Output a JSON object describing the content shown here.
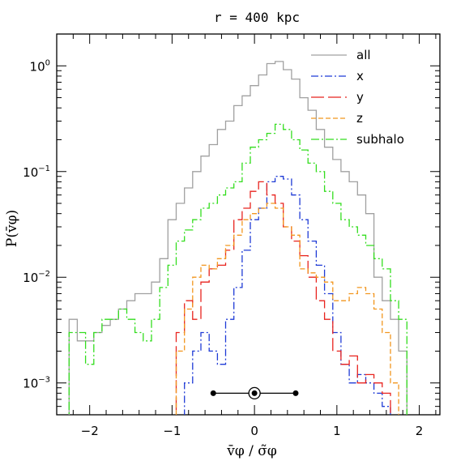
{
  "chart_data": {
    "type": "line",
    "title": "r = 400 kpc",
    "xlabel": "v̄φ / σ̃φ",
    "ylabel": "P(v̄φ)",
    "xlim": [
      -2.4,
      2.25
    ],
    "ylim": [
      0.0005,
      2.0
    ],
    "yscale": "log",
    "xticks": [
      -2,
      -1,
      0,
      1,
      2
    ],
    "xtick_labels": [
      "−2",
      "−1",
      "0",
      "1",
      "2"
    ],
    "yticks": [
      0.001,
      0.01,
      0.1,
      1
    ],
    "ytick_labels": [
      {
        "base": "10",
        "exp": "−3"
      },
      {
        "base": "10",
        "exp": "−2"
      },
      {
        "base": "10",
        "exp": "−1"
      },
      {
        "base": "10",
        "exp": "0"
      }
    ],
    "legend_position": "top-right",
    "bin_edges": [
      -2.25,
      -2.15,
      -2.05,
      -1.95,
      -1.85,
      -1.75,
      -1.65,
      -1.55,
      -1.45,
      -1.35,
      -1.25,
      -1.15,
      -1.05,
      -0.95,
      -0.85,
      -0.75,
      -0.65,
      -0.55,
      -0.45,
      -0.35,
      -0.25,
      -0.15,
      -0.05,
      0.05,
      0.15,
      0.25,
      0.35,
      0.45,
      0.55,
      0.65,
      0.75,
      0.85,
      0.95,
      1.05,
      1.15,
      1.25,
      1.35,
      1.45,
      1.55,
      1.65,
      1.75,
      1.85
    ],
    "series": [
      {
        "name": "all",
        "color": "#a0a0a0",
        "dash": "",
        "values": [
          0.004,
          0.0025,
          0.0025,
          0.003,
          0.0035,
          0.004,
          0.005,
          0.006,
          0.007,
          0.007,
          0.009,
          0.015,
          0.035,
          0.05,
          0.07,
          0.1,
          0.14,
          0.18,
          0.25,
          0.3,
          0.42,
          0.52,
          0.65,
          0.82,
          1.05,
          1.1,
          0.92,
          0.75,
          0.5,
          0.38,
          0.25,
          0.17,
          0.13,
          0.1,
          0.08,
          0.06,
          0.04,
          0.01,
          0.006,
          0.004,
          0.002
        ]
      },
      {
        "name": "x",
        "color": "#1f3bd6",
        "dash": "9 3 2 3",
        "values": [
          0,
          0,
          0,
          0,
          0,
          0,
          0,
          0,
          0,
          0,
          0,
          0,
          0,
          0,
          0.001,
          0.002,
          0.003,
          0.002,
          0.0015,
          0.004,
          0.008,
          0.018,
          0.035,
          0.045,
          0.08,
          0.09,
          0.085,
          0.06,
          0.035,
          0.022,
          0.013,
          0.007,
          0.003,
          0.0015,
          0.001,
          0.0012,
          0.001,
          0.0008,
          0.0006,
          0,
          0
        ]
      },
      {
        "name": "y",
        "color": "#e8231e",
        "dash": "16 5",
        "values": [
          0,
          0,
          0,
          0,
          0,
          0,
          0,
          0,
          0,
          0,
          0,
          0,
          0,
          0.003,
          0.006,
          0.004,
          0.009,
          0.012,
          0.013,
          0.018,
          0.035,
          0.045,
          0.065,
          0.08,
          0.06,
          0.05,
          0.03,
          0.022,
          0.016,
          0.01,
          0.006,
          0.004,
          0.002,
          0.0015,
          0.0018,
          0.001,
          0.0012,
          0.001,
          0.0008,
          0,
          0
        ]
      },
      {
        "name": "z",
        "color": "#f2961e",
        "dash": "6 3",
        "values": [
          0,
          0,
          0,
          0,
          0,
          0,
          0,
          0,
          0,
          0,
          0,
          0,
          0,
          0.002,
          0.005,
          0.01,
          0.013,
          0.012,
          0.015,
          0.02,
          0.025,
          0.035,
          0.04,
          0.045,
          0.05,
          0.045,
          0.03,
          0.025,
          0.012,
          0.011,
          0.01,
          0.009,
          0.006,
          0.006,
          0.007,
          0.008,
          0.007,
          0.005,
          0.003,
          0.001,
          0
        ]
      },
      {
        "name": "subhalo",
        "color": "#33dd1e",
        "dash": "10 3 2 3",
        "values": [
          0.003,
          0.003,
          0.0015,
          0.003,
          0.004,
          0.004,
          0.005,
          0.004,
          0.003,
          0.0025,
          0.004,
          0.008,
          0.013,
          0.022,
          0.028,
          0.035,
          0.045,
          0.05,
          0.06,
          0.07,
          0.08,
          0.12,
          0.17,
          0.2,
          0.23,
          0.28,
          0.25,
          0.2,
          0.16,
          0.12,
          0.1,
          0.065,
          0.05,
          0.035,
          0.03,
          0.025,
          0.02,
          0.015,
          0.012,
          0.006,
          0.004
        ]
      }
    ],
    "errorbar": {
      "center": 0,
      "low": -0.5,
      "high": 0.5,
      "y": 0.0008
    }
  }
}
